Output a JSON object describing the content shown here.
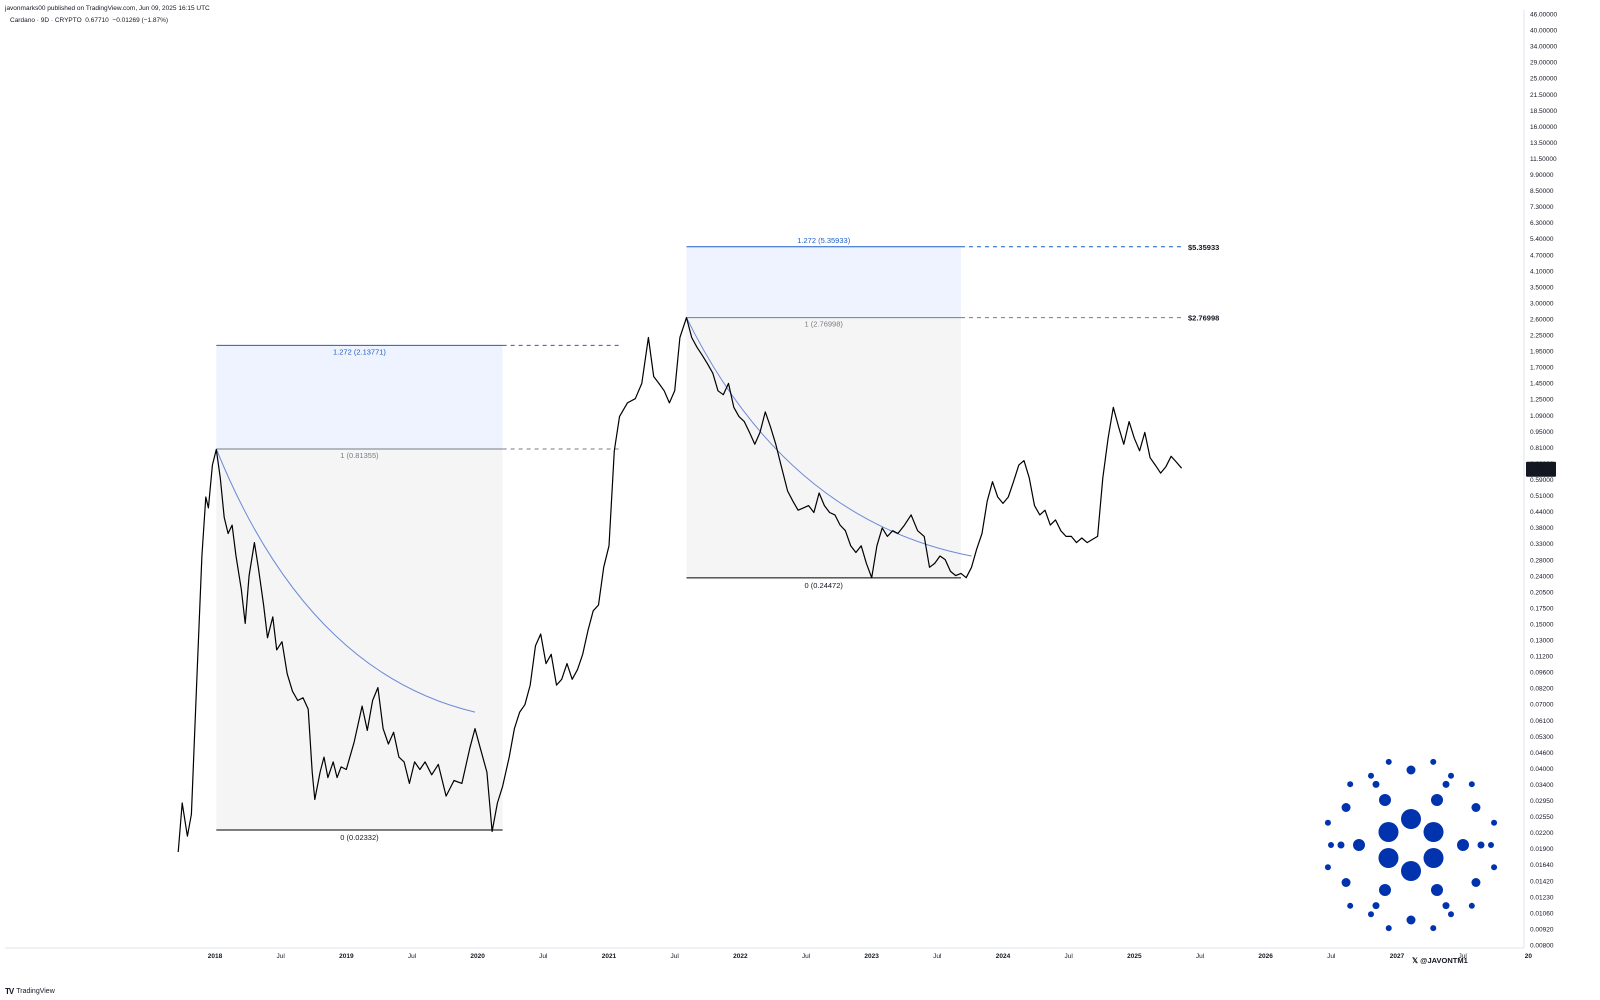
{
  "header": {
    "published": "javonmarks00 published on TradingView.com, Jun 09, 2025 16:15 UTC"
  },
  "symbol": {
    "name": "Cardano",
    "interval": "9D",
    "exchange": "CRYPTO",
    "price": "0.67710",
    "change": "−0.01269 (−1.87%)"
  },
  "footer": {
    "brand": "TradingView"
  },
  "watermark": {
    "handle": "@JAVONTM1",
    "icon": "x-logo-icon",
    "logo": "cardano-logo-icon",
    "logo_color": "#0033ad"
  },
  "last_price_label": {
    "price": "0.67710",
    "countdown": "2d 8h"
  },
  "colors": {
    "price_line": "#000000",
    "fib_extension": "#1e5ec8",
    "fib_base": "#787b86",
    "box_fill": "#f5f5f5",
    "ext_fill": "#eef3ff",
    "arc": "#6b8ad8"
  },
  "chart_data": {
    "type": "line",
    "title": "",
    "scale": "log",
    "y_ticks": [
      "46.00000",
      "40.00000",
      "34.00000",
      "29.00000",
      "25.00000",
      "21.50000",
      "18.50000",
      "16.00000",
      "13.50000",
      "11.50000",
      "9.90000",
      "8.50000",
      "7.30000",
      "6.30000",
      "5.40000",
      "4.70000",
      "4.10000",
      "3.50000",
      "3.00000",
      "2.60000",
      "2.25000",
      "1.95000",
      "1.70000",
      "1.45000",
      "1.25000",
      "1.09000",
      "0.95000",
      "0.81000",
      "0.69000",
      "0.59000",
      "0.51000",
      "0.44000",
      "0.38000",
      "0.33000",
      "0.28000",
      "0.24000",
      "0.20500",
      "0.17500",
      "0.15000",
      "0.13000",
      "0.11200",
      "0.09600",
      "0.08200",
      "0.07000",
      "0.06100",
      "0.05300",
      "0.04600",
      "0.04000",
      "0.03400",
      "0.02950",
      "0.02550",
      "0.02200",
      "0.01900",
      "0.01640",
      "0.01420",
      "0.01230",
      "0.01060",
      "0.00920",
      "0.00800"
    ],
    "x_ticks": [
      "2018",
      "Jul",
      "2019",
      "Jul",
      "2020",
      "Jul",
      "2021",
      "Jul",
      "2022",
      "Jul",
      "2023",
      "Jul",
      "2024",
      "Jul",
      "2025",
      "Jul",
      "2026",
      "Jul",
      "2027",
      "Jul",
      "20"
    ],
    "x_tick_values": [
      2018.0,
      2018.5,
      2019.0,
      2019.5,
      2020.0,
      2020.5,
      2021.0,
      2021.5,
      2022.0,
      2022.5,
      2023.0,
      2023.5,
      2024.0,
      2024.5,
      2025.0,
      2025.5,
      2026.0,
      2026.5,
      2027.0,
      2027.5,
      2028.0
    ],
    "series": [
      {
        "values": [
          [
            2017.72,
            0.019
          ],
          [
            2017.75,
            0.03
          ],
          [
            2017.79,
            0.022
          ],
          [
            2017.82,
            0.027
          ],
          [
            2017.86,
            0.09
          ],
          [
            2017.9,
            0.3
          ],
          [
            2017.93,
            0.52
          ],
          [
            2017.95,
            0.47
          ],
          [
            2017.98,
            0.7
          ],
          [
            2018.01,
            0.81
          ],
          [
            2018.04,
            0.62
          ],
          [
            2018.07,
            0.43
          ],
          [
            2018.1,
            0.37
          ],
          [
            2018.13,
            0.4
          ],
          [
            2018.16,
            0.3
          ],
          [
            2018.2,
            0.22
          ],
          [
            2018.23,
            0.16
          ],
          [
            2018.26,
            0.25
          ],
          [
            2018.3,
            0.34
          ],
          [
            2018.33,
            0.27
          ],
          [
            2018.37,
            0.19
          ],
          [
            2018.4,
            0.14
          ],
          [
            2018.44,
            0.17
          ],
          [
            2018.47,
            0.125
          ],
          [
            2018.51,
            0.135
          ],
          [
            2018.55,
            0.1
          ],
          [
            2018.59,
            0.085
          ],
          [
            2018.63,
            0.078
          ],
          [
            2018.67,
            0.08
          ],
          [
            2018.71,
            0.072
          ],
          [
            2018.74,
            0.04
          ],
          [
            2018.76,
            0.031
          ],
          [
            2018.8,
            0.04
          ],
          [
            2018.83,
            0.046
          ],
          [
            2018.86,
            0.038
          ],
          [
            2018.9,
            0.044
          ],
          [
            2018.93,
            0.038
          ],
          [
            2018.96,
            0.042
          ],
          [
            2019.0,
            0.041
          ],
          [
            2019.06,
            0.053
          ],
          [
            2019.12,
            0.074
          ],
          [
            2019.16,
            0.059
          ],
          [
            2019.2,
            0.078
          ],
          [
            2019.24,
            0.088
          ],
          [
            2019.28,
            0.06
          ],
          [
            2019.32,
            0.052
          ],
          [
            2019.36,
            0.058
          ],
          [
            2019.4,
            0.046
          ],
          [
            2019.44,
            0.044
          ],
          [
            2019.48,
            0.036
          ],
          [
            2019.52,
            0.044
          ],
          [
            2019.56,
            0.041
          ],
          [
            2019.6,
            0.044
          ],
          [
            2019.65,
            0.039
          ],
          [
            2019.7,
            0.043
          ],
          [
            2019.76,
            0.032
          ],
          [
            2019.82,
            0.037
          ],
          [
            2019.88,
            0.036
          ],
          [
            2019.94,
            0.05
          ],
          [
            2019.98,
            0.06
          ],
          [
            2020.02,
            0.05
          ],
          [
            2020.07,
            0.04
          ],
          [
            2020.11,
            0.023
          ],
          [
            2020.15,
            0.03
          ],
          [
            2020.19,
            0.035
          ],
          [
            2020.24,
            0.046
          ],
          [
            2020.28,
            0.06
          ],
          [
            2020.32,
            0.07
          ],
          [
            2020.36,
            0.075
          ],
          [
            2020.4,
            0.09
          ],
          [
            2020.44,
            0.13
          ],
          [
            2020.48,
            0.145
          ],
          [
            2020.52,
            0.11
          ],
          [
            2020.56,
            0.12
          ],
          [
            2020.6,
            0.09
          ],
          [
            2020.64,
            0.095
          ],
          [
            2020.68,
            0.11
          ],
          [
            2020.72,
            0.095
          ],
          [
            2020.76,
            0.104
          ],
          [
            2020.8,
            0.12
          ],
          [
            2020.84,
            0.15
          ],
          [
            2020.88,
            0.18
          ],
          [
            2020.92,
            0.19
          ],
          [
            2020.96,
            0.27
          ],
          [
            2021.0,
            0.33
          ],
          [
            2021.04,
            0.8
          ],
          [
            2021.08,
            1.1
          ],
          [
            2021.14,
            1.25
          ],
          [
            2021.2,
            1.3
          ],
          [
            2021.25,
            1.5
          ],
          [
            2021.3,
            2.3
          ],
          [
            2021.34,
            1.6
          ],
          [
            2021.38,
            1.5
          ],
          [
            2021.42,
            1.4
          ],
          [
            2021.46,
            1.25
          ],
          [
            2021.5,
            1.4
          ],
          [
            2021.54,
            2.3
          ],
          [
            2021.59,
            2.77
          ],
          [
            2021.63,
            2.3
          ],
          [
            2021.67,
            2.1
          ],
          [
            2021.71,
            1.95
          ],
          [
            2021.75,
            1.8
          ],
          [
            2021.79,
            1.65
          ],
          [
            2021.83,
            1.4
          ],
          [
            2021.87,
            1.35
          ],
          [
            2021.91,
            1.5
          ],
          [
            2021.95,
            1.2
          ],
          [
            2021.99,
            1.1
          ],
          [
            2022.03,
            1.05
          ],
          [
            2022.07,
            0.95
          ],
          [
            2022.11,
            0.85
          ],
          [
            2022.15,
            0.95
          ],
          [
            2022.19,
            1.15
          ],
          [
            2022.23,
            1.0
          ],
          [
            2022.27,
            0.85
          ],
          [
            2022.31,
            0.7
          ],
          [
            2022.36,
            0.55
          ],
          [
            2022.4,
            0.5
          ],
          [
            2022.44,
            0.46
          ],
          [
            2022.48,
            0.47
          ],
          [
            2022.52,
            0.48
          ],
          [
            2022.56,
            0.45
          ],
          [
            2022.6,
            0.54
          ],
          [
            2022.64,
            0.48
          ],
          [
            2022.68,
            0.45
          ],
          [
            2022.72,
            0.44
          ],
          [
            2022.76,
            0.4
          ],
          [
            2022.8,
            0.38
          ],
          [
            2022.84,
            0.33
          ],
          [
            2022.88,
            0.31
          ],
          [
            2022.92,
            0.33
          ],
          [
            2022.96,
            0.28
          ],
          [
            2023.0,
            0.245
          ],
          [
            2023.04,
            0.33
          ],
          [
            2023.08,
            0.39
          ],
          [
            2023.12,
            0.36
          ],
          [
            2023.16,
            0.38
          ],
          [
            2023.2,
            0.37
          ],
          [
            2023.25,
            0.4
          ],
          [
            2023.3,
            0.44
          ],
          [
            2023.35,
            0.38
          ],
          [
            2023.4,
            0.36
          ],
          [
            2023.44,
            0.27
          ],
          [
            2023.48,
            0.28
          ],
          [
            2023.52,
            0.3
          ],
          [
            2023.56,
            0.29
          ],
          [
            2023.6,
            0.26
          ],
          [
            2023.64,
            0.25
          ],
          [
            2023.68,
            0.255
          ],
          [
            2023.72,
            0.245
          ],
          [
            2023.76,
            0.27
          ],
          [
            2023.8,
            0.32
          ],
          [
            2023.84,
            0.37
          ],
          [
            2023.88,
            0.5
          ],
          [
            2023.92,
            0.6
          ],
          [
            2023.96,
            0.52
          ],
          [
            2024.0,
            0.49
          ],
          [
            2024.04,
            0.52
          ],
          [
            2024.08,
            0.6
          ],
          [
            2024.12,
            0.7
          ],
          [
            2024.16,
            0.73
          ],
          [
            2024.2,
            0.62
          ],
          [
            2024.24,
            0.48
          ],
          [
            2024.28,
            0.44
          ],
          [
            2024.32,
            0.46
          ],
          [
            2024.36,
            0.4
          ],
          [
            2024.4,
            0.42
          ],
          [
            2024.44,
            0.38
          ],
          [
            2024.48,
            0.36
          ],
          [
            2024.52,
            0.36
          ],
          [
            2024.56,
            0.34
          ],
          [
            2024.6,
            0.355
          ],
          [
            2024.64,
            0.34
          ],
          [
            2024.68,
            0.35
          ],
          [
            2024.72,
            0.36
          ],
          [
            2024.76,
            0.62
          ],
          [
            2024.8,
            0.9
          ],
          [
            2024.84,
            1.2
          ],
          [
            2024.88,
            1.0
          ],
          [
            2024.92,
            0.85
          ],
          [
            2024.96,
            1.05
          ],
          [
            2025.0,
            0.9
          ],
          [
            2025.04,
            0.8
          ],
          [
            2025.08,
            0.95
          ],
          [
            2025.12,
            0.75
          ],
          [
            2025.16,
            0.7
          ],
          [
            2025.2,
            0.65
          ],
          [
            2025.24,
            0.69
          ],
          [
            2025.28,
            0.76
          ],
          [
            2025.32,
            0.72
          ],
          [
            2025.36,
            0.68
          ]
        ]
      }
    ],
    "annotations": [
      {
        "type": "fib",
        "levels": [
          {
            "ratio": "0",
            "value": 0.02332,
            "label": "0 (0.02332)"
          },
          {
            "ratio": "1",
            "value": 0.81355,
            "label": "1 (0.81355)"
          },
          {
            "ratio": "1.272",
            "value": 2.13771,
            "label": "1.272 (2.13771)"
          }
        ],
        "x_start": 2018.01,
        "x_end": 2020.19
      },
      {
        "type": "fib",
        "levels": [
          {
            "ratio": "0",
            "value": 0.24472,
            "label": "0 (0.24472)"
          },
          {
            "ratio": "1",
            "value": 2.76998,
            "label": "1 (2.76998)"
          },
          {
            "ratio": "1.272",
            "value": 5.35933,
            "label": "1.272 (5.35933)"
          }
        ],
        "x_start": 2021.59,
        "x_end": 2023.68
      },
      {
        "type": "target",
        "value": 5.35933,
        "label": "$5.35933"
      },
      {
        "type": "target",
        "value": 2.76998,
        "label": "$2.76998"
      }
    ]
  }
}
